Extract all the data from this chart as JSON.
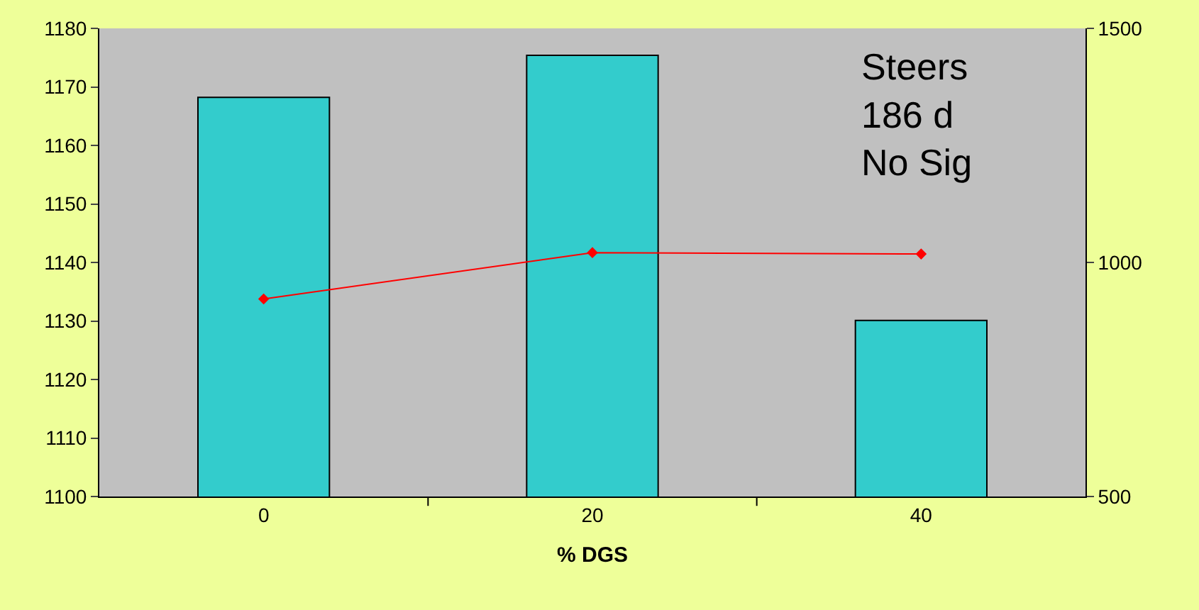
{
  "chart_data": {
    "type": "bar",
    "xlabel": "% DGS",
    "categories": [
      "0",
      "20",
      "40"
    ],
    "series": [
      {
        "color": "#33cccc",
        "values": [
          1168.2,
          1175.4,
          1130.1
        ]
      },
      {
        "type": "line",
        "axis": "y2",
        "color": "#ff0000",
        "values": [
          922,
          1021,
          1018
        ],
        "marker": "diamond",
        "line_style": "solid"
      }
    ],
    "ylim": [
      1100,
      1180
    ],
    "yticks": [
      1100,
      1110,
      1120,
      1130,
      1140,
      1150,
      1160,
      1170,
      1180
    ],
    "y2lim": [
      500,
      1500
    ],
    "y2ticks": [
      500,
      1000,
      1500
    ],
    "annotations": [
      "Steers\n186 d\nNo Sig"
    ],
    "grid": false
  }
}
